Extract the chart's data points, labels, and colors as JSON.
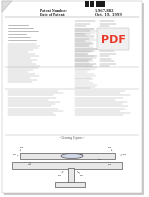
{
  "bg_color": "#ffffff",
  "page_bg": "#f0eeeb",
  "barcode_color": "#1a1a1a",
  "patent_number": "5,967,882",
  "patent_date": "Oct. 19, 1999",
  "title_text": "Patent Number:",
  "date_label": "Date of Patent:",
  "pdf_logo_color": "#e8392a",
  "pdf_logo_bg": "#f5f5f5",
  "text_color": "#555555",
  "dark_text": "#222222",
  "line_color": "#888888",
  "diagram_line_color": "#555555",
  "diagram_bg": "#ffffff",
  "shadow_color": "#cccccc"
}
